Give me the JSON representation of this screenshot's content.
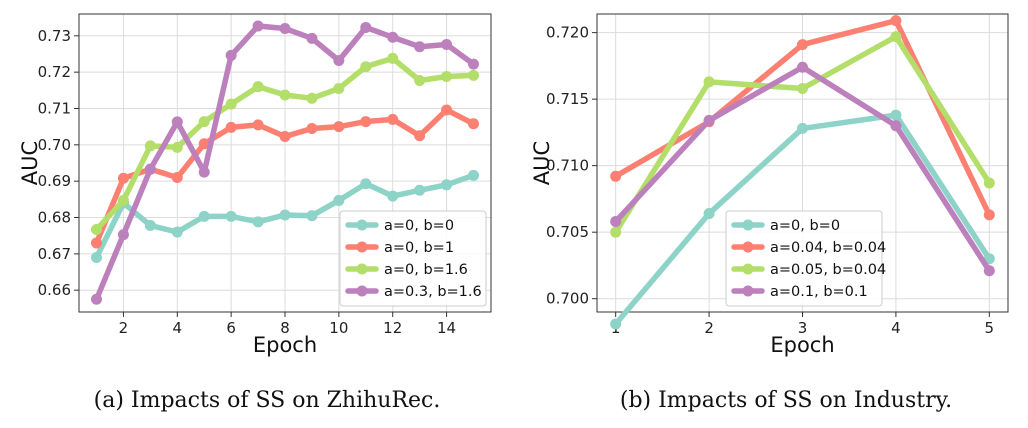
{
  "chart_data": [
    {
      "type": "line",
      "xlabel": "Epoch",
      "ylabel": "AUC",
      "xlim": [
        0.35,
        15.65
      ],
      "ylim": [
        0.654,
        0.736
      ],
      "xticks": [
        2,
        4,
        6,
        8,
        10,
        12,
        14
      ],
      "yticks": [
        0.66,
        0.67,
        0.68,
        0.69,
        0.7,
        0.71,
        0.72,
        0.73
      ],
      "ytick_labels": [
        "0.66",
        "0.67",
        "0.68",
        "0.69",
        "0.70",
        "0.71",
        "0.72",
        "0.73"
      ],
      "grid": true,
      "legend_position": "lower-right",
      "caption": "(a) Impacts of SS on ZhihuRec.",
      "x": [
        1,
        2,
        3,
        4,
        5,
        6,
        7,
        8,
        9,
        10,
        11,
        12,
        13,
        14,
        15
      ],
      "series": [
        {
          "name": "a=0, b=0",
          "color": "#8dd3c7",
          "values": [
            0.669,
            0.684,
            0.6778,
            0.676,
            0.6803,
            0.6803,
            0.6788,
            0.6807,
            0.6805,
            0.6847,
            0.6893,
            0.6859,
            0.6875,
            0.689,
            0.6916
          ]
        },
        {
          "name": "a=0, b=1",
          "color": "#fb8072",
          "values": [
            0.673,
            0.6908,
            0.6933,
            0.691,
            0.7003,
            0.7048,
            0.7055,
            0.7023,
            0.7045,
            0.705,
            0.7064,
            0.707,
            0.7025,
            0.7096,
            0.7058
          ]
        },
        {
          "name": "a=0, b=1.6",
          "color": "#b3de69",
          "values": [
            0.6767,
            0.6847,
            0.6997,
            0.6993,
            0.7064,
            0.7112,
            0.716,
            0.7137,
            0.7128,
            0.7155,
            0.7215,
            0.7238,
            0.7177,
            0.7188,
            0.7191
          ]
        },
        {
          "name": "a=0.3, b=1.6",
          "color": "#bc80bd",
          "values": [
            0.6575,
            0.6753,
            0.6933,
            0.7063,
            0.6925,
            0.7246,
            0.7327,
            0.732,
            0.7293,
            0.7232,
            0.7323,
            0.7296,
            0.727,
            0.7276,
            0.7222
          ]
        }
      ]
    },
    {
      "type": "line",
      "xlabel": "Epoch",
      "ylabel": "AUC",
      "xlim": [
        0.8,
        5.2
      ],
      "ylim": [
        0.699,
        0.7214
      ],
      "xticks": [
        1,
        2,
        3,
        4,
        5
      ],
      "yticks": [
        0.7,
        0.705,
        0.71,
        0.715,
        0.72
      ],
      "ytick_labels": [
        "0.700",
        "0.705",
        "0.710",
        "0.715",
        "0.720"
      ],
      "grid": true,
      "legend_position": "lower-center",
      "caption": "(b) Impacts of SS on Industry.",
      "x": [
        1,
        2,
        3,
        4,
        5
      ],
      "series": [
        {
          "name": "a=0, b=0",
          "color": "#8dd3c7",
          "values": [
            0.6981,
            0.7064,
            0.7128,
            0.7138,
            0.703
          ]
        },
        {
          "name": "a=0.04, b=0.04",
          "color": "#fb8072",
          "values": [
            0.7092,
            0.7133,
            0.7191,
            0.7209,
            0.7063
          ]
        },
        {
          "name": "a=0.05, b=0.04",
          "color": "#b3de69",
          "values": [
            0.705,
            0.7163,
            0.7158,
            0.7197,
            0.7087
          ]
        },
        {
          "name": "a=0.1, b=0.1",
          "color": "#bc80bd",
          "values": [
            0.7058,
            0.7134,
            0.7174,
            0.713,
            0.7021
          ]
        }
      ]
    }
  ]
}
